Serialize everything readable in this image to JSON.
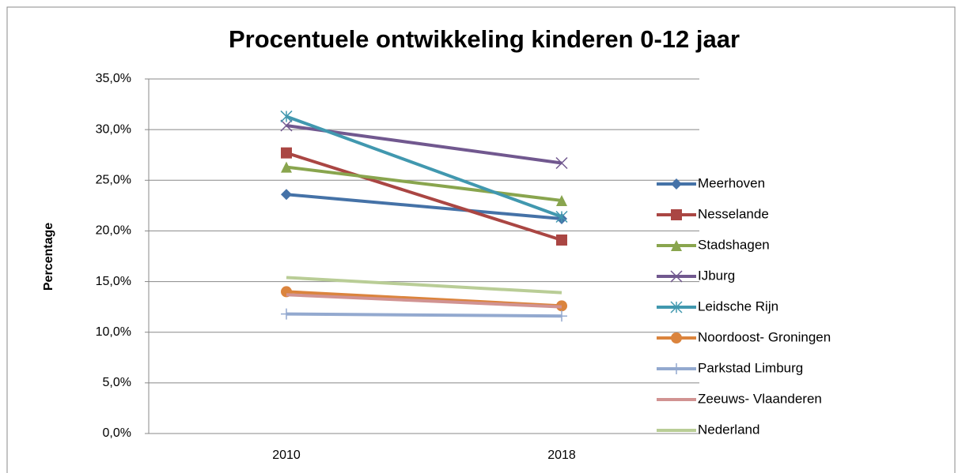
{
  "chart_data": {
    "type": "line",
    "title": "Procentuele ontwikkeling kinderen 0-12 jaar",
    "y_label": "Percentage",
    "categories": [
      "2010",
      "2018"
    ],
    "ylim": [
      0,
      35
    ],
    "yticks": [
      {
        "value": 0,
        "label": "0,0%"
      },
      {
        "value": 5,
        "label": "5,0%"
      },
      {
        "value": 10,
        "label": "10,0%"
      },
      {
        "value": 15,
        "label": "15,0%"
      },
      {
        "value": 20,
        "label": "20,0%"
      },
      {
        "value": 25,
        "label": "25,0%"
      },
      {
        "value": 30,
        "label": "30,0%"
      },
      {
        "value": 35,
        "label": "35,0%"
      }
    ],
    "grid": true,
    "legend": "right",
    "series": [
      {
        "name": "Meerhoven",
        "color": "#4572a7",
        "marker": "diamond",
        "values": [
          23.6,
          21.2
        ]
      },
      {
        "name": "Nesselande",
        "color": "#aa4643",
        "marker": "square",
        "values": [
          27.7,
          19.1
        ]
      },
      {
        "name": "Stadshagen",
        "color": "#89a54e",
        "marker": "triangle",
        "values": [
          26.3,
          23.0
        ]
      },
      {
        "name": "IJburg",
        "color": "#71588f",
        "marker": "x",
        "values": [
          30.4,
          26.7
        ]
      },
      {
        "name": "Leidsche Rijn",
        "color": "#4198af",
        "marker": "asterisk",
        "values": [
          31.3,
          21.4
        ]
      },
      {
        "name": "Noordoost- Groningen",
        "color": "#db843d",
        "marker": "circle",
        "values": [
          14.0,
          12.6
        ]
      },
      {
        "name": "Parkstad Limburg",
        "color": "#93a9cf",
        "marker": "plus",
        "values": [
          11.8,
          11.6
        ]
      },
      {
        "name": "Zeeuws- Vlaanderen",
        "color": "#d19392",
        "marker": "none",
        "values": [
          13.7,
          12.5
        ]
      },
      {
        "name": "Nederland",
        "color": "#b9cd96",
        "marker": "none",
        "values": [
          15.4,
          13.9
        ]
      }
    ]
  }
}
